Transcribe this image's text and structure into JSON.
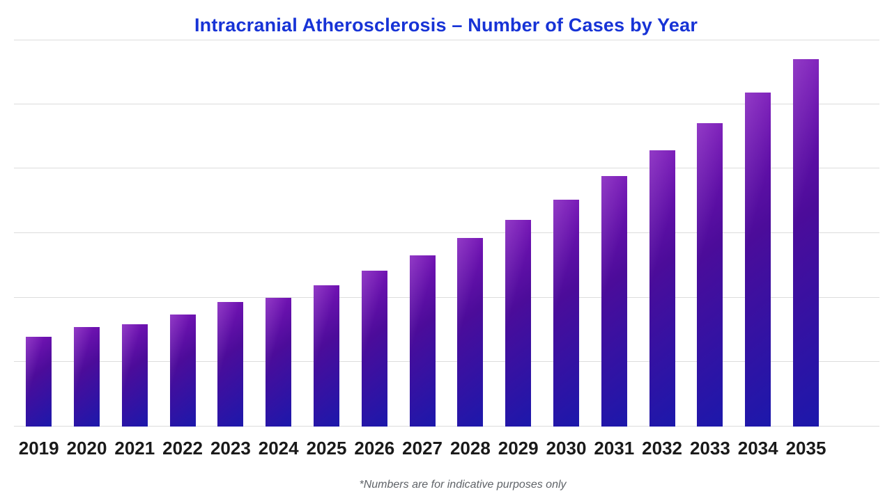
{
  "chart": {
    "title": "Intracranial Atherosclerosis – Number of Cases by Year",
    "footnote": "*Numbers are for indicative purposes only",
    "colors": {
      "title": "#1733d6",
      "grid": "#dcdcdc",
      "label": "#1a1a1a",
      "footnote": "#5f6368",
      "bar_gradient_start": "#7d15bb",
      "bar_gradient_mid": "#4c0c9a",
      "bar_gradient_end": "#1c18ab",
      "background": "#ffffff"
    }
  },
  "chart_data": {
    "type": "bar",
    "title": "Intracranial Atherosclerosis – Number of Cases by Year",
    "categories": [
      "2019",
      "2020",
      "2021",
      "2022",
      "2023",
      "2024",
      "2025",
      "2026",
      "2027",
      "2028",
      "2029",
      "2030",
      "2031",
      "2032",
      "2033",
      "2034",
      "2035"
    ],
    "values": [
      1.39,
      1.54,
      1.59,
      1.74,
      1.93,
      2.0,
      2.19,
      2.42,
      2.65,
      2.92,
      3.21,
      3.52,
      3.89,
      4.28,
      4.7,
      5.18,
      5.7
    ],
    "values_unit": "gridline-intervals (y axis has no tick labels; values estimated from gridlines)",
    "xlabel": "",
    "ylabel": "",
    "ylim": [
      0,
      6
    ],
    "gridlines": "horizontal, 7 lines including top rule and baseline",
    "y_tick_labels": "none",
    "legend": "none",
    "footnote": "*Numbers are for indicative purposes only"
  }
}
